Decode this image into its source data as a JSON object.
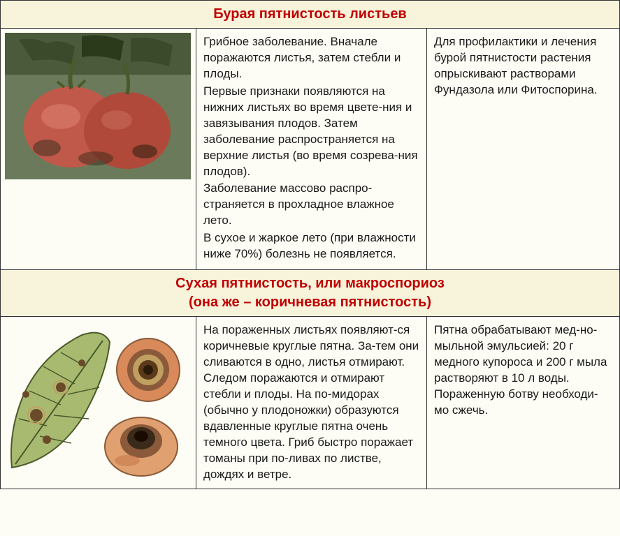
{
  "section1": {
    "title": "Бурая пятнистость листьев",
    "title_color": "#c00000",
    "description": "Грибное заболевание. Вначале поражаются листья, затем стебли и плоды.\nПервые признаки появляются на нижних листьях во время цвете-ния и завязывания плодов. Затем заболевание распространяется на верхние листья (во время созрева-ния плодов).\nЗаболевание массово распро-страняется в прохладное влажное лето.\nВ сухое и жаркое лето (при влажности ниже 70%) болезнь не появляется.",
    "treatment": "Для профилактики и лечения бурой пятнистости растения опрыскивают растворами Фундазола или Фитоспорина.",
    "image_colors": {
      "tomato": "#c0594a",
      "dark": "#3a2a20",
      "leaf": "#5a6b3a",
      "bg": "#6b7a5a"
    }
  },
  "section2": {
    "title_line1": "Сухая пятнистость, или макроспориоз",
    "title_line2": "(она же – коричневая пятнистость)",
    "title_color": "#c00000",
    "description": "На пораженных листьях появляют-ся коричневые круглые пятна. За-тем они сливаются в одно, листья отмирают. Следом поражаются и отмирают стебли и плоды. На по-мидорах (обычно у плодоножки) образуются вдавленные круглые пятна очень темного цвета. Гриб быстро поражает томаны при по-ливах по листве, дождях и ветре.",
    "treatment": "Пятна обрабатывают мед-но-мыльной эмульсией: 20 г медного купороса и 200 г мыла растворяют в 10 л воды. Пораженную ботву необходи-мо сжечь.",
    "image_colors": {
      "leaf": "#8aa05a",
      "leaf_dark": "#4a5a2a",
      "spot": "#6b4a2a",
      "fruit": "#d88a5a",
      "fruit_dark": "#3a2a1a",
      "ring": "#c0a060"
    }
  }
}
